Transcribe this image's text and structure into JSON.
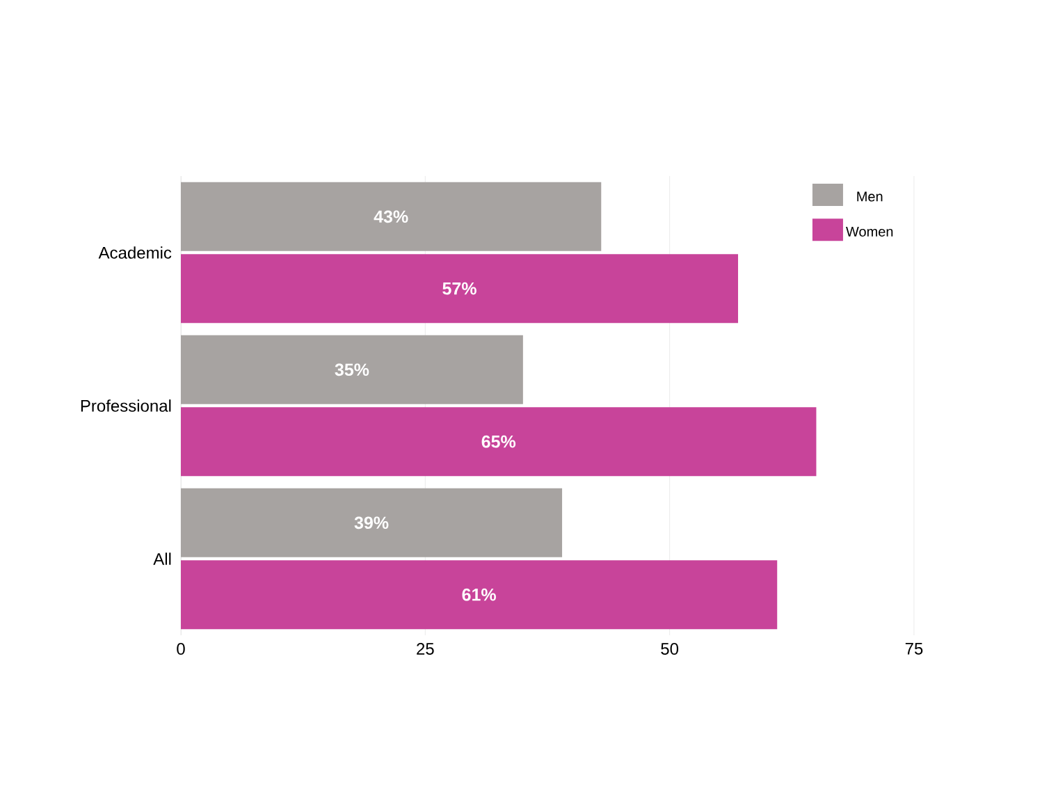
{
  "chart_data": {
    "type": "bar",
    "orientation": "horizontal",
    "categories": [
      "Academic",
      "Professional",
      "All"
    ],
    "series": [
      {
        "name": "Men",
        "color": "#a7a3a1",
        "values": [
          43,
          35,
          39
        ],
        "value_labels": [
          "43%",
          "35%",
          "39%"
        ]
      },
      {
        "name": "Women",
        "color": "#c8449a",
        "values": [
          57,
          65,
          61
        ],
        "value_labels": [
          "57%",
          "65%",
          "61%"
        ]
      }
    ],
    "xlim": [
      0,
      75
    ],
    "xticks": [
      0,
      25,
      50,
      75
    ],
    "grid": "x",
    "legend": "top right"
  }
}
